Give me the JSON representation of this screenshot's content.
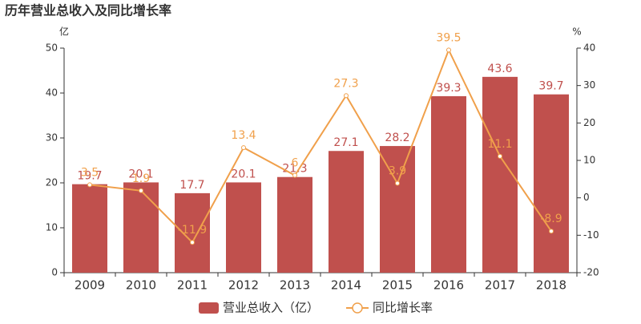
{
  "chart_data": {
    "type": "combo",
    "title": "历年营业总收入及同比增长率",
    "y_label": "亿",
    "y2_label": "%",
    "categories": [
      "2009",
      "2010",
      "2011",
      "2012",
      "2013",
      "2014",
      "2015",
      "2016",
      "2017",
      "2018"
    ],
    "series": [
      {
        "name": "营业总收入（亿）",
        "type": "bar",
        "color": "#c0504d",
        "values": [
          19.7,
          20.1,
          17.7,
          20.1,
          21.3,
          27.1,
          28.2,
          39.3,
          43.6,
          39.7
        ]
      },
      {
        "name": "同比增长率",
        "type": "line",
        "axis": "y2",
        "color": "#f0a04b",
        "values": [
          3.5,
          1.9,
          -11.9,
          13.4,
          6,
          27.3,
          3.9,
          39.5,
          11.1,
          -8.9
        ]
      }
    ],
    "ylim": [
      0,
      50
    ],
    "yticks": [
      0,
      10,
      20,
      30,
      40,
      50
    ],
    "y2lim": [
      -20,
      40
    ],
    "y2ticks": [
      -20,
      -10,
      0,
      10,
      20,
      30,
      40
    ],
    "legend": "bottom"
  }
}
